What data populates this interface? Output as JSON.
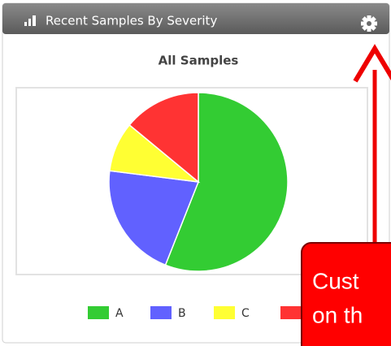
{
  "header": {
    "title": "Recent Samples By Severity"
  },
  "chart_data": {
    "type": "pie",
    "title": "All Samples",
    "categories": [
      "A",
      "B",
      "C",
      null
    ],
    "values": [
      56,
      21,
      9,
      14
    ],
    "colors": [
      "#33cc33",
      "#6161ff",
      "#ffff33",
      "#ff3333"
    ]
  },
  "callout": {
    "lines": [
      "Cust",
      "on th"
    ]
  }
}
